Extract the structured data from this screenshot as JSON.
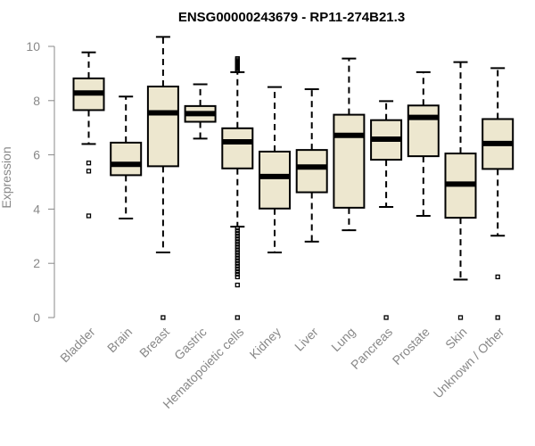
{
  "chart_data": {
    "type": "boxplot",
    "title": "ENSG00000243679 - RP11-274B21.3",
    "xlabel": "",
    "ylabel": "Expression",
    "ylim": [
      0,
      10.5
    ],
    "yticks": [
      0,
      2,
      4,
      6,
      8,
      10
    ],
    "box_color": "#EDE7CF",
    "axis_color": "#888888",
    "categories": [
      "Bladder",
      "Brain",
      "Breast",
      "Gastric",
      "Hematopoietic cells",
      "Kidney",
      "Liver",
      "Lung",
      "Pancreas",
      "Prostate",
      "Skin",
      "Unknown / Other"
    ],
    "boxes": [
      {
        "name": "Bladder",
        "min": 6.4,
        "q1": 7.65,
        "median": 8.28,
        "q3": 8.82,
        "max": 9.78,
        "outliers": [
          5.7,
          5.4,
          3.75
        ]
      },
      {
        "name": "Brain",
        "min": 3.65,
        "q1": 5.25,
        "median": 5.65,
        "q3": 6.45,
        "max": 8.15,
        "outliers": []
      },
      {
        "name": "Breast",
        "min": 2.4,
        "q1": 5.58,
        "median": 7.55,
        "q3": 8.52,
        "max": 10.35,
        "outliers": [
          0
        ]
      },
      {
        "name": "Gastric",
        "min": 6.6,
        "q1": 7.22,
        "median": 7.52,
        "q3": 7.8,
        "max": 8.6,
        "outliers": []
      },
      {
        "name": "Hematopoietic cells",
        "min": 3.35,
        "q1": 5.5,
        "median": 6.48,
        "q3": 6.98,
        "max": 9.05,
        "outliers": [
          9.1,
          9.15,
          9.2,
          9.25,
          9.3,
          9.35,
          9.4,
          9.45,
          9.5,
          9.55,
          3.3,
          3.2,
          3.1,
          3.0,
          2.9,
          2.8,
          2.7,
          2.6,
          2.5,
          2.4,
          2.3,
          2.2,
          2.1,
          2.0,
          1.9,
          1.8,
          1.7,
          1.6,
          1.5,
          1.2,
          0
        ]
      },
      {
        "name": "Kidney",
        "min": 2.4,
        "q1": 4.02,
        "median": 5.2,
        "q3": 6.12,
        "max": 8.5,
        "outliers": []
      },
      {
        "name": "Liver",
        "min": 2.8,
        "q1": 4.62,
        "median": 5.55,
        "q3": 6.18,
        "max": 8.42,
        "outliers": []
      },
      {
        "name": "Lung",
        "min": 3.22,
        "q1": 4.05,
        "median": 6.72,
        "q3": 7.48,
        "max": 9.55,
        "outliers": []
      },
      {
        "name": "Pancreas",
        "min": 4.08,
        "q1": 5.82,
        "median": 6.58,
        "q3": 7.28,
        "max": 7.98,
        "outliers": [
          0
        ]
      },
      {
        "name": "Prostate",
        "min": 3.75,
        "q1": 5.95,
        "median": 7.38,
        "q3": 7.82,
        "max": 9.05,
        "outliers": []
      },
      {
        "name": "Skin",
        "min": 1.4,
        "q1": 3.68,
        "median": 4.92,
        "q3": 6.05,
        "max": 9.42,
        "outliers": [
          0
        ]
      },
      {
        "name": "Unknown / Other",
        "min": 3.02,
        "q1": 5.48,
        "median": 6.42,
        "q3": 7.32,
        "max": 9.2,
        "outliers": [
          1.5,
          0
        ]
      }
    ]
  }
}
